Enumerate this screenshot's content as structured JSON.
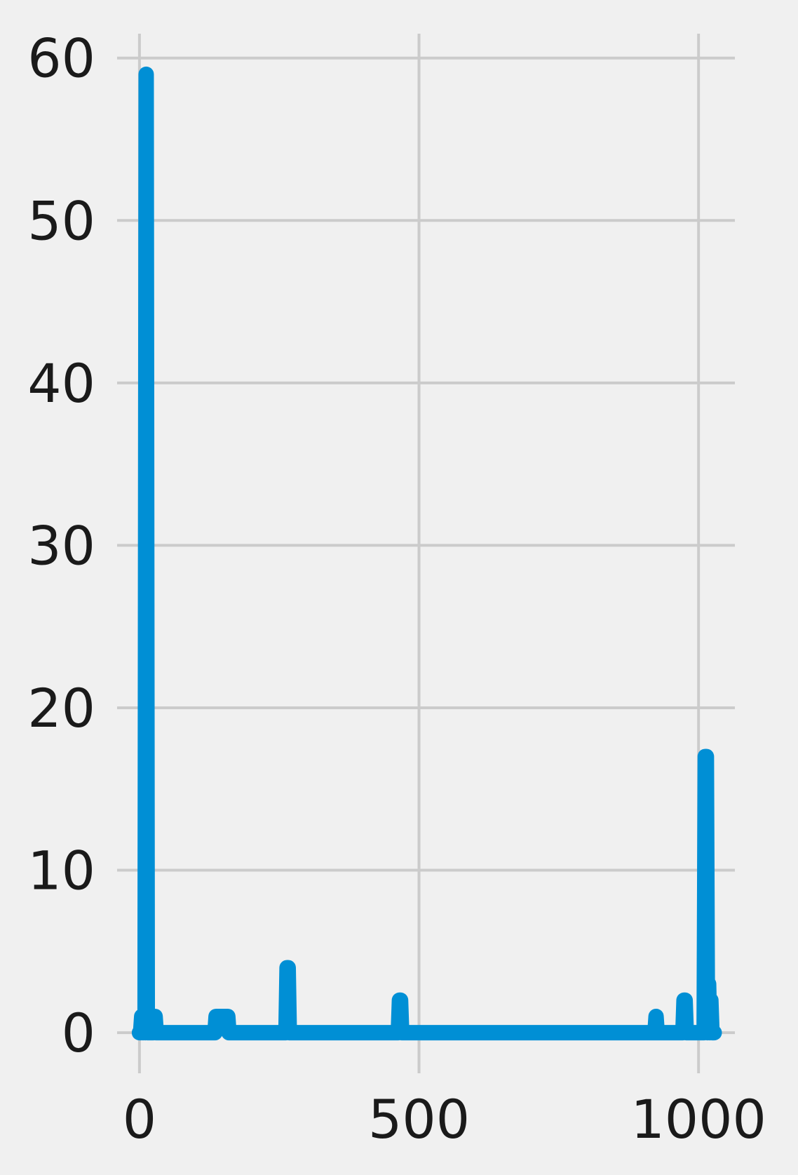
{
  "chart_data": {
    "type": "line",
    "title": "",
    "xlabel": "",
    "ylabel": "",
    "xlim": [
      -40,
      1065
    ],
    "ylim": [
      -2.5,
      61.5
    ],
    "xticks": [
      0,
      500,
      1000
    ],
    "yticks": [
      0,
      10,
      20,
      30,
      40,
      50,
      60
    ],
    "grid": true,
    "legend": "none",
    "series": [
      {
        "color": "#008fd5",
        "x": [
          0,
          2,
          4,
          6,
          8,
          10,
          12,
          14,
          16,
          18,
          20,
          22,
          24,
          26,
          28,
          30,
          33,
          36,
          40,
          60,
          100,
          135,
          137,
          139,
          143,
          150,
          156,
          158,
          160,
          200,
          262,
          264,
          266,
          268,
          270,
          350,
          420,
          463,
          465,
          467,
          469,
          471,
          600,
          800,
          920,
          922,
          924,
          926,
          928,
          960,
          972,
          974,
          976,
          978,
          980,
          1000,
          1010,
          1012,
          1014,
          1016,
          1018,
          1020,
          1022,
          1024,
          1026,
          1028
        ],
        "y": [
          0,
          0,
          1,
          0,
          1,
          0,
          59,
          0,
          0,
          0,
          1,
          0,
          0,
          1,
          1,
          0,
          0,
          0,
          0,
          0,
          0,
          0,
          1,
          1,
          1,
          1,
          1,
          1,
          0,
          0,
          0,
          4,
          4,
          0,
          0,
          0,
          0,
          0,
          2,
          2,
          0,
          0,
          0,
          0,
          0,
          0,
          1,
          0,
          0,
          0,
          0,
          2,
          2,
          0,
          0,
          0,
          0,
          17,
          17,
          0,
          3,
          0,
          2,
          0,
          0,
          0
        ]
      }
    ]
  }
}
